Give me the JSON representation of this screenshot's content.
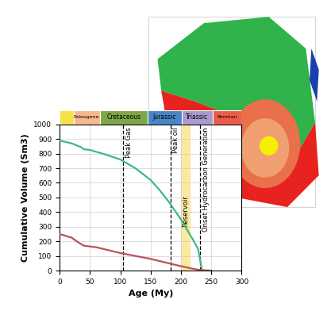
{
  "chart_data": {
    "type": "line",
    "xlabel": "Age (My)",
    "ylabel": "Cumulative Volume (Sm3)",
    "xlim": [
      0,
      300
    ],
    "xticks": [
      0,
      50,
      100,
      150,
      200,
      250,
      300
    ],
    "ylim": [
      0,
      1000
    ],
    "yticks": [
      0,
      100,
      200,
      300,
      400,
      500,
      600,
      700,
      800,
      900,
      1000
    ],
    "grid": true,
    "series": [
      {
        "color": "#3cb88a",
        "x": [
          0,
          20,
          35,
          40,
          50,
          75,
          100,
          125,
          150,
          165,
          180,
          200,
          220,
          228,
          235
        ],
        "values": [
          890,
          870,
          845,
          830,
          825,
          795,
          760,
          700,
          620,
          550,
          470,
          350,
          210,
          150,
          0
        ]
      },
      {
        "color": "#b5545c",
        "x": [
          0,
          20,
          30,
          40,
          60,
          100,
          150,
          200,
          220,
          230,
          240,
          250
        ],
        "values": [
          250,
          225,
          195,
          170,
          160,
          120,
          80,
          30,
          12,
          5,
          2,
          0
        ]
      }
    ],
    "periods": [
      {
        "start": 0,
        "end": 23,
        "color": "#f5e04a"
      },
      {
        "label": "Paleogene",
        "start": 23,
        "end": 66,
        "color": "#f7b98b"
      },
      {
        "label": "Cretaceous",
        "start": 66,
        "end": 145,
        "color": "#7ea848"
      },
      {
        "label": "Jurassic",
        "start": 145,
        "end": 201,
        "color": "#4a86c5"
      },
      {
        "label": "Triassic",
        "start": 201,
        "end": 252,
        "color": "#a99ad0"
      },
      {
        "label": "Permian",
        "start": 252,
        "end": 300,
        "color": "#ee5a4a"
      }
    ],
    "annotations": [
      {
        "x": 105,
        "label": "Peak Gas"
      },
      {
        "x": 183,
        "label": "Peak oil"
      },
      {
        "x": 232,
        "label": "Onset Hydrocarbon Generation"
      }
    ],
    "reservoir": {
      "start": 200,
      "end": 215,
      "label": "Reservoir",
      "color": "#fbe9a0"
    }
  }
}
